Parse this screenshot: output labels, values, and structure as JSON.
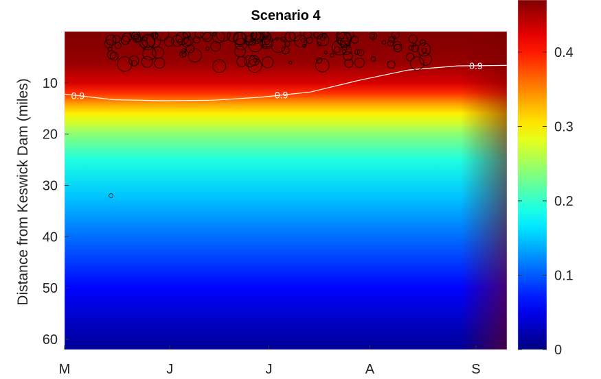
{
  "chart_data": {
    "type": "heatmap",
    "title": "Scenario 4",
    "xlabel": "",
    "ylabel": "Distance from Keswick Dam (miles)",
    "x_ticks": [
      "M",
      "J",
      "J",
      "A",
      "S"
    ],
    "y_ticks": [
      10,
      20,
      30,
      40,
      50,
      60
    ],
    "ylim": [
      0,
      62
    ],
    "y_reversed": true,
    "colorbar": {
      "colormap": "jet",
      "ticks": [
        0,
        0.1,
        0.2,
        0.3,
        0.4
      ],
      "range": [
        0,
        0.47
      ]
    },
    "contour": {
      "level": 0.9,
      "labels": [
        "0.9",
        "0.9",
        "0.9"
      ],
      "color": "#ffffff",
      "path_depth_miles": [
        12.2,
        13.3,
        13.5,
        13.4,
        12.8,
        11.8,
        9.5,
        7.5,
        6.7,
        6.6
      ]
    },
    "field_profile": {
      "depth_miles": [
        0,
        6,
        10,
        12,
        14,
        16,
        18,
        20,
        25,
        32,
        40,
        50,
        62
      ],
      "value": [
        0.47,
        0.46,
        0.43,
        0.39,
        0.34,
        0.3,
        0.27,
        0.24,
        0.19,
        0.15,
        0.11,
        0.06,
        0.01
      ]
    },
    "observations": {
      "marker": "open circle",
      "color": "#000000"
    }
  }
}
